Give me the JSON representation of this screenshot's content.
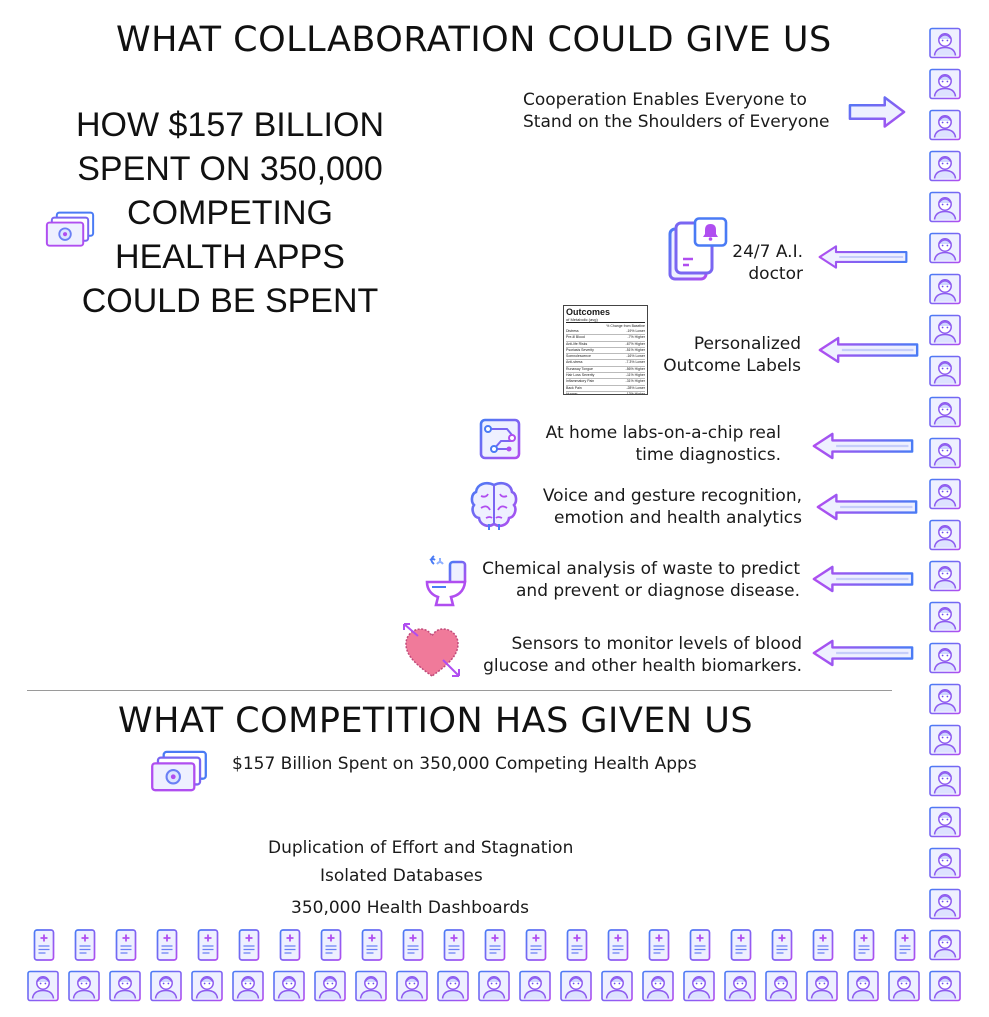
{
  "top_title": "WHAT COLLABORATION COULD GIVE US",
  "headline": "HOW $157 BILLION SPENT ON 350,000 COMPETING HEALTH APPS COULD BE SPENT",
  "cooperation": {
    "line1": "Cooperation Enables Everyone to",
    "line2": "Stand on the Shoulders of Everyone"
  },
  "features": [
    {
      "line1": "24/7 A.I.",
      "line2": "doctor",
      "icon": "tablet-notification-icon"
    },
    {
      "line1": "Personalized",
      "line2": "Outcome Labels",
      "icon": "outcome-label-icon"
    },
    {
      "line1": "At home labs-on-a-chip real",
      "line2": "time diagnostics.",
      "icon": "lab-chip-icon"
    },
    {
      "line1": "Voice and gesture recognition,",
      "line2": "emotion and health analytics",
      "icon": "brain-icon"
    },
    {
      "line1": "Chemical analysis of waste to predict",
      "line2": "and prevent or diagnose disease.",
      "icon": "toilet-icon"
    },
    {
      "line1": "Sensors to monitor levels of blood",
      "line2": "glucose and other health biomarkers.",
      "icon": "heart-icon"
    }
  ],
  "outcome_label": {
    "title": "Outcomes",
    "subtitle": "of Metabolic (avg)",
    "column_header": "% Change from Baseline",
    "rows": [
      [
        "Distress",
        "-19% Lower"
      ],
      [
        "Pre-ill Blood",
        "-7% Higher"
      ],
      [
        "Anti-life Risks",
        "-67% Higher"
      ],
      [
        "Psoriasis Severity",
        "-51% Higher"
      ],
      [
        "Somnolescence",
        "-16% Lower"
      ],
      [
        "Anti-stress",
        "-7.3% Lower"
      ],
      [
        "Runaway Tongue",
        "-56% Higher"
      ],
      [
        "Hair Loss Severity",
        "-11% Higher"
      ],
      [
        "Inflammatory Pain",
        "-31% Higher"
      ],
      [
        "Back Pain",
        "-28% Lower"
      ],
      [
        "Hunger",
        "-13% Higher"
      ]
    ]
  },
  "bottom_title": "WHAT COMPETITION HAS GIVEN US",
  "spent_text": "$157 Billion Spent on 350,000 Competing Health Apps",
  "problems": {
    "duplication": "Duplication of Effort and Stagnation",
    "isolated": "Isolated Databases",
    "dashboards": "350,000 Health Dashboards"
  },
  "colors": {
    "accent_blue": "#4a7bf5",
    "accent_purple": "#a24cf0",
    "heart_pink": "#f07a9a"
  }
}
